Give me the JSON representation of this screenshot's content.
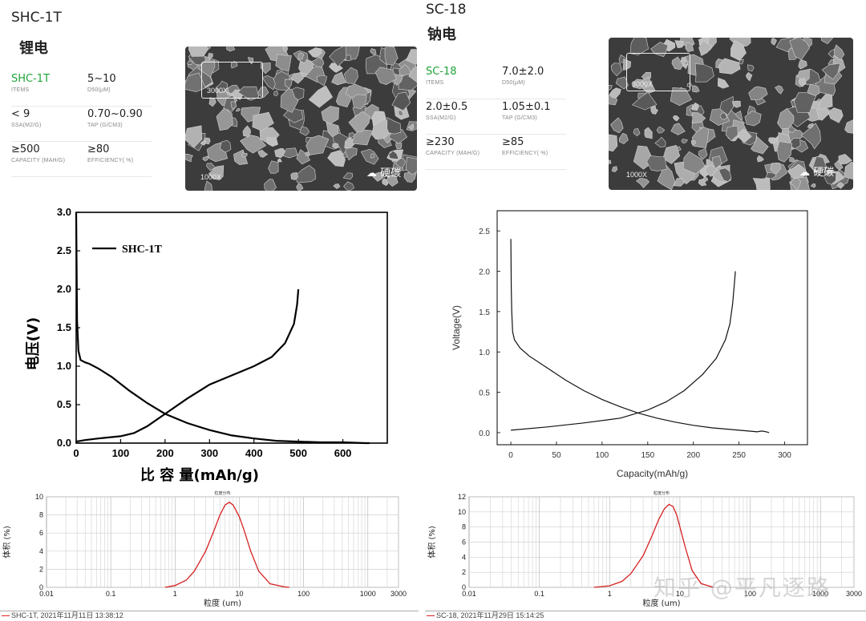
{
  "left": {
    "model": "SHC-1T",
    "subtitle": "锂电",
    "specs": [
      {
        "value": "SHC-1T",
        "label": "ITEMS",
        "highlight": true
      },
      {
        "value": "5~10",
        "label": "D50(μM)"
      },
      {
        "value": "< 9",
        "label": "SSA(M2/G)"
      },
      {
        "value": "0.70~0.90",
        "label": "TAP (G/CM3)"
      },
      {
        "value": "≥500",
        "label": "CAPACITY (MAH/G)"
      },
      {
        "value": "≥80",
        "label": "EFFICIENCY( %)"
      }
    ],
    "sem": {
      "zoom_label": "3000X",
      "base_label": "1000X",
      "watermark": "硬碳"
    }
  },
  "right": {
    "model": "SC-18",
    "subtitle": "钠电",
    "specs": [
      {
        "value": "SC-18",
        "label": "ITEMS",
        "highlight": true
      },
      {
        "value": "7.0±2.0",
        "label": "D50(μM)"
      },
      {
        "value": "2.0±0.5",
        "label": "SSA(M2/G)"
      },
      {
        "value": "1.05±0.1",
        "label": "TAP (G/CM3)"
      },
      {
        "value": "≥230",
        "label": "CAPACITY (MAH/G)"
      },
      {
        "value": "≥85",
        "label": "EFFICIENCY( %)"
      }
    ],
    "sem": {
      "zoom_label": "3000X",
      "base_label": "1000X",
      "watermark": "硬碳"
    }
  },
  "watermark": "知乎 @平凡逐路",
  "colors": {
    "accent_green": "#1fa33a",
    "psd_curve": "#d62020"
  },
  "chart_data": [
    {
      "id": "shc-voltage",
      "type": "line",
      "title": "",
      "xlabel": "比 容 量(mAh/g)",
      "ylabel": "电压(V)",
      "xlim": [
        0,
        700
      ],
      "ylim": [
        0,
        3.0
      ],
      "xticks": [
        "0",
        "100",
        "200",
        "300",
        "400",
        "500",
        "600"
      ],
      "yticks": [
        "0.0",
        "0.5",
        "1.0",
        "1.5",
        "2.0",
        "2.5",
        "3.0"
      ],
      "legend": "SHC-1T",
      "series": [
        {
          "name": "discharge",
          "x": [
            0,
            2,
            5,
            10,
            20,
            30,
            50,
            80,
            120,
            160,
            200,
            250,
            300,
            350,
            400,
            450,
            500,
            550,
            600,
            650,
            660
          ],
          "y": [
            3.0,
            1.6,
            1.2,
            1.08,
            1.05,
            1.03,
            0.97,
            0.86,
            0.68,
            0.52,
            0.38,
            0.26,
            0.17,
            0.1,
            0.06,
            0.03,
            0.02,
            0.01,
            0.01,
            0.0,
            0.0
          ]
        },
        {
          "name": "charge",
          "x": [
            0,
            20,
            50,
            100,
            130,
            160,
            200,
            250,
            300,
            350,
            400,
            440,
            470,
            490,
            497,
            500
          ],
          "y": [
            0.02,
            0.04,
            0.06,
            0.09,
            0.13,
            0.22,
            0.38,
            0.58,
            0.76,
            0.88,
            1.0,
            1.12,
            1.3,
            1.55,
            1.8,
            2.0
          ]
        }
      ]
    },
    {
      "id": "sc-voltage",
      "type": "line",
      "title": "",
      "xlabel": "Capacity(mAh/g)",
      "ylabel": "Voltage(V)",
      "xlim": [
        -15,
        325
      ],
      "ylim": [
        -0.15,
        2.75
      ],
      "xticks": [
        "0",
        "50",
        "100",
        "150",
        "200",
        "250",
        "300"
      ],
      "yticks": [
        "0.0",
        "0.5",
        "1.0",
        "1.5",
        "2.0",
        "2.5"
      ],
      "series": [
        {
          "name": "discharge",
          "x": [
            0,
            0.5,
            1,
            2,
            4,
            10,
            20,
            40,
            60,
            80,
            100,
            120,
            140,
            160,
            180,
            200,
            220,
            240,
            260,
            270,
            275,
            280,
            283
          ],
          "y": [
            2.4,
            1.8,
            1.5,
            1.25,
            1.15,
            1.05,
            0.95,
            0.8,
            0.65,
            0.52,
            0.41,
            0.32,
            0.24,
            0.18,
            0.13,
            0.09,
            0.06,
            0.04,
            0.02,
            0.01,
            0.02,
            0.01,
            0.0
          ]
        },
        {
          "name": "charge",
          "x": [
            0,
            40,
            80,
            120,
            150,
            170,
            190,
            210,
            225,
            235,
            240,
            243,
            245,
            246
          ],
          "y": [
            0.03,
            0.07,
            0.12,
            0.18,
            0.28,
            0.38,
            0.52,
            0.72,
            0.92,
            1.15,
            1.35,
            1.6,
            1.85,
            2.0
          ]
        }
      ]
    },
    {
      "id": "shc-psd",
      "type": "line",
      "title": "粒度分布",
      "xlabel": "粒度 (um)",
      "ylabel": "体积 (%)",
      "xscale": "log",
      "xlim": [
        0.01,
        3000
      ],
      "ylim": [
        0,
        10
      ],
      "xticks": [
        "0.01",
        "0.1",
        "1",
        "10",
        "100",
        "1000",
        "3000"
      ],
      "yticks": [
        "0",
        "2",
        "4",
        "6",
        "8",
        "10"
      ],
      "legend": "SHC-1T, 2021年11月11日 13:38:12",
      "series": [
        {
          "name": "SHC-1T",
          "x": [
            0.7,
            1,
            1.5,
            2,
            3,
            4,
            5,
            6,
            7,
            8,
            10,
            12,
            15,
            20,
            30,
            50,
            60
          ],
          "y": [
            0,
            0.2,
            0.8,
            1.8,
            4.0,
            6.2,
            8.0,
            9.1,
            9.4,
            9.1,
            7.8,
            6.2,
            4.0,
            1.8,
            0.4,
            0.05,
            0
          ]
        }
      ]
    },
    {
      "id": "sc-psd",
      "type": "line",
      "title": "粒度分布",
      "xlabel": "粒度 (um)",
      "ylabel": "体积 (%)",
      "xscale": "log",
      "xlim": [
        0.01,
        3000
      ],
      "ylim": [
        0,
        12
      ],
      "xticks": [
        "0.01",
        "0.1",
        "1",
        "10",
        "100",
        "1000",
        "3000"
      ],
      "yticks": [
        "0",
        "2",
        "4",
        "6",
        "8",
        "10",
        "12"
      ],
      "legend": "SC-18, 2021年11月29日 15:14:25",
      "series": [
        {
          "name": "SC-18",
          "x": [
            0.6,
            1,
            1.5,
            2,
            3,
            4,
            5,
            6,
            7,
            8,
            9,
            10,
            12,
            15,
            20,
            30
          ],
          "y": [
            0,
            0.2,
            0.8,
            1.8,
            4.2,
            6.8,
            9.0,
            10.4,
            11.0,
            10.7,
            9.6,
            8.0,
            5.2,
            2.2,
            0.5,
            0
          ]
        }
      ]
    }
  ]
}
